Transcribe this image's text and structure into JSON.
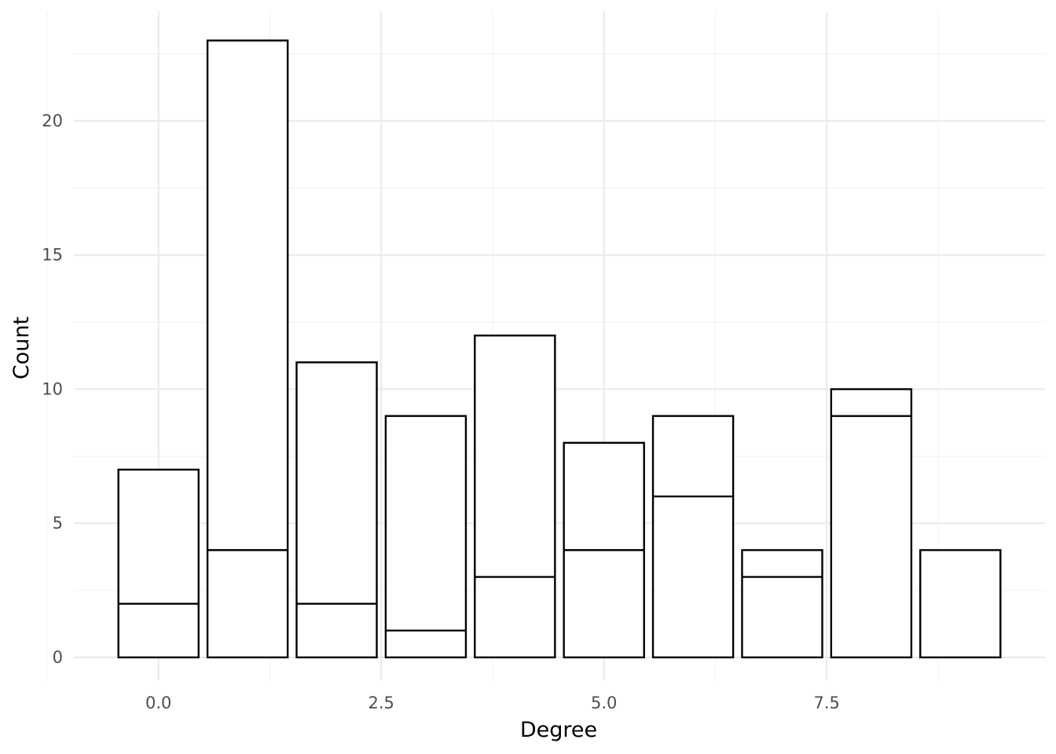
{
  "chart_data": {
    "type": "bar",
    "stacked": true,
    "title": "",
    "xlabel": "Degree",
    "ylabel": "Count",
    "x": [
      0,
      1,
      2,
      3,
      4,
      5,
      6,
      7,
      8,
      9
    ],
    "series": [
      {
        "values": [
          2,
          4,
          2,
          1,
          3,
          4,
          6,
          3,
          9,
          4
        ]
      },
      {
        "values": [
          5,
          19,
          9,
          8,
          9,
          4,
          3,
          1,
          1,
          0
        ]
      }
    ],
    "totals": [
      7,
      23,
      11,
      9,
      12,
      8,
      9,
      4,
      10,
      4
    ],
    "xlim": [
      -0.95,
      9.95
    ],
    "ylim": [
      -0.85,
      24.1
    ],
    "x_ticks": [
      0,
      2.5,
      5,
      7.5
    ],
    "x_tick_labels": [
      "0.0",
      "2.5",
      "5.0",
      "7.5"
    ],
    "y_ticks": [
      0,
      5,
      10,
      15,
      20
    ],
    "y_tick_labels": [
      "0",
      "5",
      "10",
      "15",
      "20"
    ],
    "grid": true,
    "legend": "none",
    "bar_fill": "#ffffff",
    "bar_outline": "#000000",
    "grid_color": "#ebebeb"
  }
}
